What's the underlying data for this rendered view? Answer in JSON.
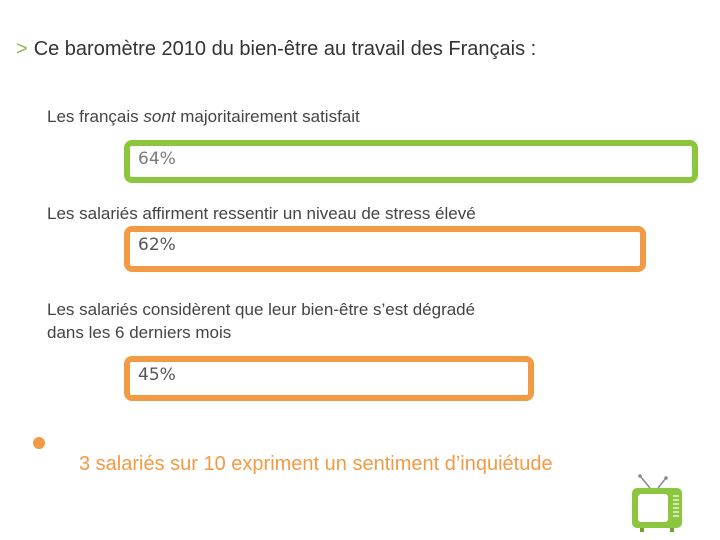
{
  "title": {
    "caret": ">",
    "text": "Ce baromètre  2010 du bien-être  au travail  des Français :"
  },
  "stats": [
    {
      "label_before": "Les français ",
      "label_emphasis": "sont",
      "label_after": " majoritairement  satisfait",
      "percent_text": "64%",
      "value": 64,
      "color": "#8cc63f"
    },
    {
      "label_line1": "Les salariés  affirment  ressentir un  niveau de stress élevé",
      "percent_text": "62%",
      "value": 62,
      "color": "#f39a45"
    },
    {
      "label_line1": "Les salariés  considèrent  que leur bien-être  s’est dégradé",
      "label_line2": "dans les 6 derniers mois",
      "percent_text": "45%",
      "value": 45,
      "color": "#f39a45"
    }
  ],
  "conclusion": {
    "text": "3 salariés sur 10  expriment  un sentiment  d’inquiétude",
    "color": "#f39a45",
    "bullet_color": "#f39a45"
  },
  "icon": {
    "name": "tv-icon",
    "color": "#8cc63f"
  }
}
